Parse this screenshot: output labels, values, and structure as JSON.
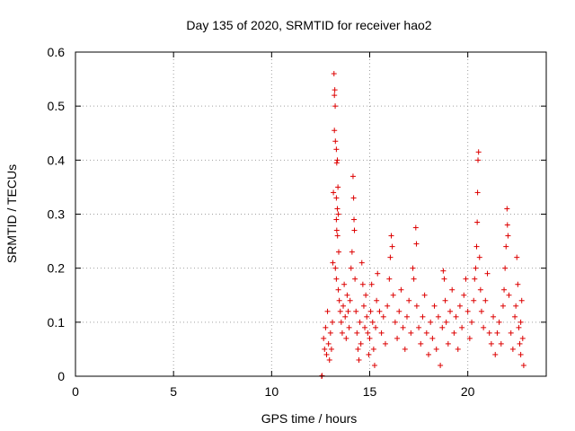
{
  "chart_data": {
    "type": "scatter",
    "title": "Day 135 of 2020, SRMTID for receiver hao2",
    "xlabel": "GPS time / hours",
    "ylabel": "SRMTID / TECUs",
    "xlim": [
      0,
      24
    ],
    "ylim": [
      0,
      0.6
    ],
    "xticks": [
      0,
      5,
      10,
      15,
      20
    ],
    "xtick_labels": [
      "0",
      "5",
      "10",
      "15",
      "20"
    ],
    "yticks": [
      0,
      0.1,
      0.2,
      0.3,
      0.4,
      0.5,
      0.6
    ],
    "ytick_labels": [
      "0",
      "0.1",
      "0.2",
      "0.3",
      "0.4",
      "0.5",
      "0.6"
    ],
    "grid": true,
    "marker": "plus",
    "marker_color": "#dd0000",
    "series": [
      {
        "name": "SRMTID",
        "points": [
          [
            12.55,
            0.0
          ],
          [
            12.57,
            0.001
          ],
          [
            12.65,
            0.07
          ],
          [
            12.7,
            0.05
          ],
          [
            12.75,
            0.09
          ],
          [
            12.8,
            0.04
          ],
          [
            12.85,
            0.12
          ],
          [
            12.9,
            0.06
          ],
          [
            12.95,
            0.03
          ],
          [
            13.0,
            0.08
          ],
          [
            13.05,
            0.05
          ],
          [
            13.1,
            0.1
          ],
          [
            13.12,
            0.21
          ],
          [
            13.15,
            0.34
          ],
          [
            13.18,
            0.56
          ],
          [
            13.2,
            0.52
          ],
          [
            13.22,
            0.53
          ],
          [
            13.24,
            0.5
          ],
          [
            13.2,
            0.455
          ],
          [
            13.25,
            0.435
          ],
          [
            13.3,
            0.42
          ],
          [
            13.32,
            0.395
          ],
          [
            13.35,
            0.4
          ],
          [
            13.38,
            0.35
          ],
          [
            13.3,
            0.33
          ],
          [
            13.35,
            0.31
          ],
          [
            13.3,
            0.29
          ],
          [
            13.4,
            0.3
          ],
          [
            13.32,
            0.27
          ],
          [
            13.36,
            0.26
          ],
          [
            13.42,
            0.23
          ],
          [
            13.25,
            0.2
          ],
          [
            13.3,
            0.18
          ],
          [
            13.4,
            0.16
          ],
          [
            13.45,
            0.14
          ],
          [
            13.5,
            0.12
          ],
          [
            13.55,
            0.1
          ],
          [
            13.6,
            0.08
          ],
          [
            13.65,
            0.13
          ],
          [
            13.7,
            0.17
          ],
          [
            13.75,
            0.11
          ],
          [
            13.8,
            0.07
          ],
          [
            13.85,
            0.15
          ],
          [
            13.9,
            0.12
          ],
          [
            13.95,
            0.09
          ],
          [
            14.0,
            0.14
          ],
          [
            14.05,
            0.2
          ],
          [
            14.1,
            0.23
          ],
          [
            14.15,
            0.37
          ],
          [
            14.18,
            0.33
          ],
          [
            14.2,
            0.29
          ],
          [
            14.22,
            0.27
          ],
          [
            14.25,
            0.18
          ],
          [
            14.3,
            0.12
          ],
          [
            14.35,
            0.08
          ],
          [
            14.4,
            0.05
          ],
          [
            14.45,
            0.03
          ],
          [
            14.5,
            0.1
          ],
          [
            14.55,
            0.06
          ],
          [
            14.6,
            0.21
          ],
          [
            14.65,
            0.17
          ],
          [
            14.7,
            0.13
          ],
          [
            14.75,
            0.09
          ],
          [
            14.8,
            0.15
          ],
          [
            14.85,
            0.11
          ],
          [
            14.9,
            0.08
          ],
          [
            14.95,
            0.04
          ],
          [
            15.0,
            0.07
          ],
          [
            15.05,
            0.12
          ],
          [
            15.1,
            0.17
          ],
          [
            15.15,
            0.1
          ],
          [
            15.2,
            0.05
          ],
          [
            15.25,
            0.02
          ],
          [
            15.3,
            0.09
          ],
          [
            15.35,
            0.14
          ],
          [
            15.4,
            0.19
          ],
          [
            15.5,
            0.12
          ],
          [
            15.6,
            0.08
          ],
          [
            15.7,
            0.11
          ],
          [
            15.8,
            0.06
          ],
          [
            15.9,
            0.13
          ],
          [
            16.0,
            0.18
          ],
          [
            16.05,
            0.22
          ],
          [
            16.1,
            0.26
          ],
          [
            16.15,
            0.24
          ],
          [
            16.2,
            0.15
          ],
          [
            16.3,
            0.1
          ],
          [
            16.4,
            0.07
          ],
          [
            16.5,
            0.12
          ],
          [
            16.6,
            0.16
          ],
          [
            16.7,
            0.09
          ],
          [
            16.8,
            0.05
          ],
          [
            16.9,
            0.11
          ],
          [
            17.0,
            0.14
          ],
          [
            17.1,
            0.08
          ],
          [
            17.2,
            0.2
          ],
          [
            17.25,
            0.18
          ],
          [
            17.35,
            0.275
          ],
          [
            17.38,
            0.245
          ],
          [
            17.4,
            0.13
          ],
          [
            17.5,
            0.09
          ],
          [
            17.6,
            0.06
          ],
          [
            17.7,
            0.11
          ],
          [
            17.8,
            0.15
          ],
          [
            17.9,
            0.08
          ],
          [
            18.0,
            0.04
          ],
          [
            18.1,
            0.1
          ],
          [
            18.2,
            0.07
          ],
          [
            18.3,
            0.13
          ],
          [
            18.4,
            0.05
          ],
          [
            18.5,
            0.11
          ],
          [
            18.6,
            0.02
          ],
          [
            18.7,
            0.09
          ],
          [
            18.75,
            0.195
          ],
          [
            18.8,
            0.18
          ],
          [
            18.85,
            0.14
          ],
          [
            18.9,
            0.1
          ],
          [
            19.0,
            0.06
          ],
          [
            19.1,
            0.12
          ],
          [
            19.2,
            0.16
          ],
          [
            19.3,
            0.08
          ],
          [
            19.4,
            0.11
          ],
          [
            19.5,
            0.05
          ],
          [
            19.6,
            0.13
          ],
          [
            19.7,
            0.09
          ],
          [
            19.8,
            0.15
          ],
          [
            19.9,
            0.18
          ],
          [
            20.0,
            0.12
          ],
          [
            20.1,
            0.07
          ],
          [
            20.2,
            0.1
          ],
          [
            20.3,
            0.14
          ],
          [
            20.35,
            0.18
          ],
          [
            20.4,
            0.2
          ],
          [
            20.45,
            0.24
          ],
          [
            20.48,
            0.285
          ],
          [
            20.5,
            0.34
          ],
          [
            20.52,
            0.4
          ],
          [
            20.55,
            0.415
          ],
          [
            20.6,
            0.22
          ],
          [
            20.65,
            0.16
          ],
          [
            20.7,
            0.12
          ],
          [
            20.8,
            0.09
          ],
          [
            20.9,
            0.14
          ],
          [
            21.0,
            0.19
          ],
          [
            21.1,
            0.08
          ],
          [
            21.2,
            0.06
          ],
          [
            21.3,
            0.11
          ],
          [
            21.4,
            0.04
          ],
          [
            21.5,
            0.08
          ],
          [
            21.6,
            0.1
          ],
          [
            21.7,
            0.06
          ],
          [
            21.8,
            0.13
          ],
          [
            21.85,
            0.16
          ],
          [
            21.9,
            0.2
          ],
          [
            21.95,
            0.24
          ],
          [
            22.0,
            0.31
          ],
          [
            22.02,
            0.28
          ],
          [
            22.05,
            0.26
          ],
          [
            22.1,
            0.15
          ],
          [
            22.2,
            0.08
          ],
          [
            22.3,
            0.05
          ],
          [
            22.4,
            0.11
          ],
          [
            22.45,
            0.13
          ],
          [
            22.5,
            0.22
          ],
          [
            22.55,
            0.17
          ],
          [
            22.6,
            0.09
          ],
          [
            22.65,
            0.06
          ],
          [
            22.7,
            0.1
          ],
          [
            22.75,
            0.14
          ],
          [
            22.8,
            0.07
          ],
          [
            22.85,
            0.02
          ],
          [
            22.7,
            0.04
          ]
        ]
      }
    ]
  }
}
